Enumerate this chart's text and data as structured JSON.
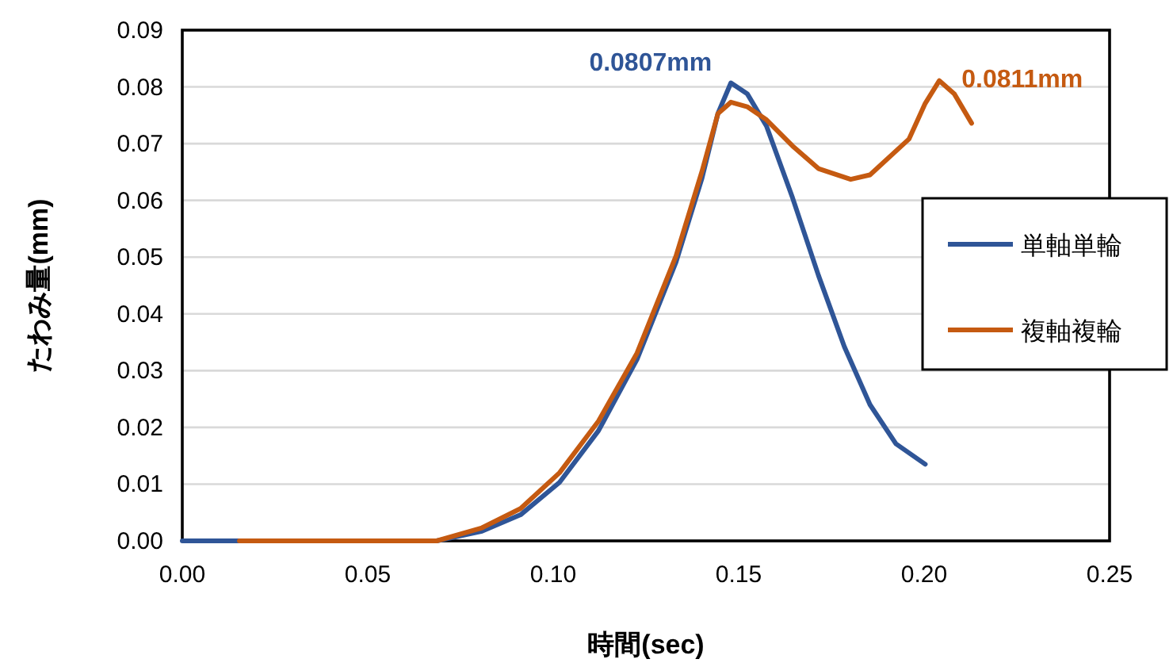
{
  "chart_data": {
    "type": "line",
    "xlabel": "時間(sec)",
    "ylabel": "たわみ量(mm)",
    "xlim": [
      0,
      0.25
    ],
    "ylim": [
      0,
      0.09
    ],
    "xticks": [
      {
        "value": 0,
        "label": "0.00"
      },
      {
        "value": 0.05,
        "label": "0.05"
      },
      {
        "value": 0.1,
        "label": "0.10"
      },
      {
        "value": 0.15,
        "label": "0.15"
      },
      {
        "value": 0.2,
        "label": "0.20"
      },
      {
        "value": 0.25,
        "label": "0.25"
      }
    ],
    "yticks": [
      {
        "value": 0,
        "label": "0.00"
      },
      {
        "value": 0.01,
        "label": "0.01"
      },
      {
        "value": 0.02,
        "label": "0.02"
      },
      {
        "value": 0.03,
        "label": "0.03"
      },
      {
        "value": 0.04,
        "label": "0.04"
      },
      {
        "value": 0.05,
        "label": "0.05"
      },
      {
        "value": 0.06,
        "label": "0.06"
      },
      {
        "value": 0.07,
        "label": "0.07"
      },
      {
        "value": 0.08,
        "label": "0.08"
      },
      {
        "value": 0.09,
        "label": "0.09"
      }
    ],
    "grid": "y",
    "legend": "right",
    "marker": "none",
    "line_style": "solid",
    "series": [
      {
        "name": "単軸単輪",
        "color": "#2f5597",
        "x": [
          0,
          0.0686,
          0.0808,
          0.0912,
          0.1017,
          0.1122,
          0.1226,
          0.1331,
          0.1401,
          0.1444,
          0.1479,
          0.1523,
          0.1575,
          0.1645,
          0.1715,
          0.1785,
          0.1854,
          0.1924,
          0.2003
        ],
        "values": [
          0,
          0,
          0.0017,
          0.0046,
          0.0103,
          0.0194,
          0.032,
          0.0491,
          0.0639,
          0.0753,
          0.0807,
          0.0788,
          0.0731,
          0.0605,
          0.0468,
          0.0342,
          0.024,
          0.0171,
          0.0135
        ]
      },
      {
        "name": "複軸複輪",
        "color": "#c55a11",
        "x": [
          0.0154,
          0.0686,
          0.0808,
          0.0912,
          0.1017,
          0.1122,
          0.1226,
          0.1331,
          0.1401,
          0.1444,
          0.1479,
          0.1523,
          0.1575,
          0.1645,
          0.1715,
          0.1802,
          0.1854,
          0.1959,
          0.2003,
          0.2041,
          0.2081,
          0.2128
        ],
        "values": [
          0,
          0,
          0.0023,
          0.0057,
          0.012,
          0.0211,
          0.0331,
          0.0502,
          0.0651,
          0.0753,
          0.0773,
          0.0765,
          0.0742,
          0.0696,
          0.0656,
          0.0637,
          0.0645,
          0.0708,
          0.0771,
          0.0811,
          0.0788,
          0.0736
        ]
      }
    ],
    "annotations": [
      {
        "text": "0.0807mm",
        "x": 0.1479,
        "y": 0.0807
      },
      {
        "text": "0.0811mm",
        "x": 0.2041,
        "y": 0.0811
      }
    ]
  }
}
